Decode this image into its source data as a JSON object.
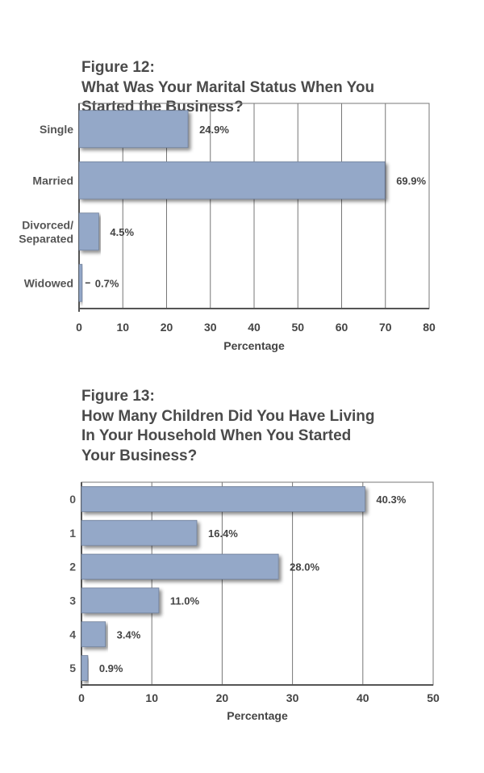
{
  "chart_data": [
    {
      "type": "bar",
      "orientation": "horizontal",
      "figure_label": "Figure 12:",
      "title": "What Was Your Marital Status When You Started the Business?",
      "title_lines": [
        "What Was Your Marital Status When You",
        "Started the Business?"
      ],
      "categories": [
        [
          "Single"
        ],
        [
          "Married"
        ],
        [
          "Divorced/",
          "Separated"
        ],
        [
          "Widowed"
        ]
      ],
      "values": [
        24.9,
        69.9,
        4.5,
        0.7
      ],
      "value_labels": [
        "24.9%",
        "69.9%",
        "4.5%",
        "0.7%"
      ],
      "xlabel": "Percentage",
      "ylabel": "",
      "xlim": [
        0,
        80
      ],
      "xticks": [
        "0",
        "10",
        "20",
        "30",
        "40",
        "50",
        "60",
        "70",
        "80"
      ],
      "grid": true,
      "bar_color": "#94a8c8"
    },
    {
      "type": "bar",
      "orientation": "horizontal",
      "figure_label": "Figure 13:",
      "title": "How Many Children Did You Have Living In Your Household When You Started Your Business?",
      "title_lines": [
        "How Many Children Did You Have Living",
        "In Your Household When You Started",
        "Your Business?"
      ],
      "categories": [
        [
          "0"
        ],
        [
          "1"
        ],
        [
          "2"
        ],
        [
          "3"
        ],
        [
          "4"
        ],
        [
          "5"
        ]
      ],
      "values": [
        40.3,
        16.4,
        28.0,
        11.0,
        3.4,
        0.9
      ],
      "value_labels": [
        "40.3%",
        "16.4%",
        "28.0%",
        "11.0%",
        "3.4%",
        "0.9%"
      ],
      "xlabel": "Percentage",
      "ylabel": "",
      "xlim": [
        0,
        50
      ],
      "xticks": [
        "0",
        "10",
        "20",
        "30",
        "40",
        "50"
      ],
      "grid": true,
      "bar_color": "#94a8c8"
    }
  ]
}
